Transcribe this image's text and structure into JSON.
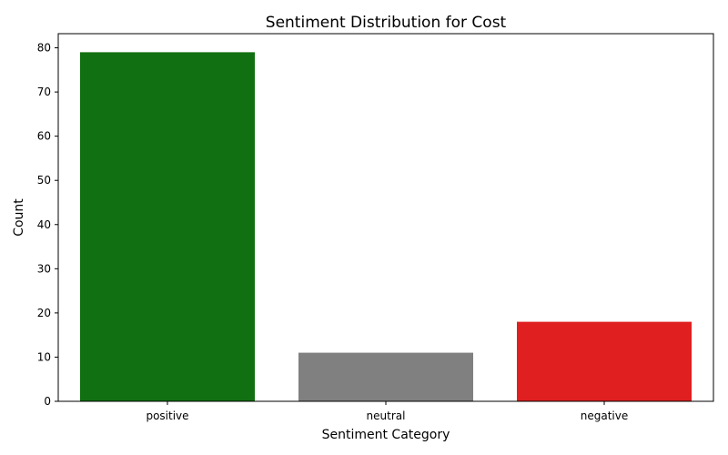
{
  "chart_data": {
    "type": "bar",
    "title": "Sentiment Distribution for Cost",
    "xlabel": "Sentiment Category",
    "ylabel": "Count",
    "categories": [
      "positive",
      "neutral",
      "negative"
    ],
    "values": [
      79,
      11,
      18
    ],
    "colors": [
      "#117011",
      "#808080",
      "#e02020"
    ],
    "ylim": [
      0,
      83.2
    ],
    "yticks": [
      0,
      10,
      20,
      30,
      40,
      50,
      60,
      70,
      80
    ],
    "grid": false,
    "legend": "none"
  }
}
